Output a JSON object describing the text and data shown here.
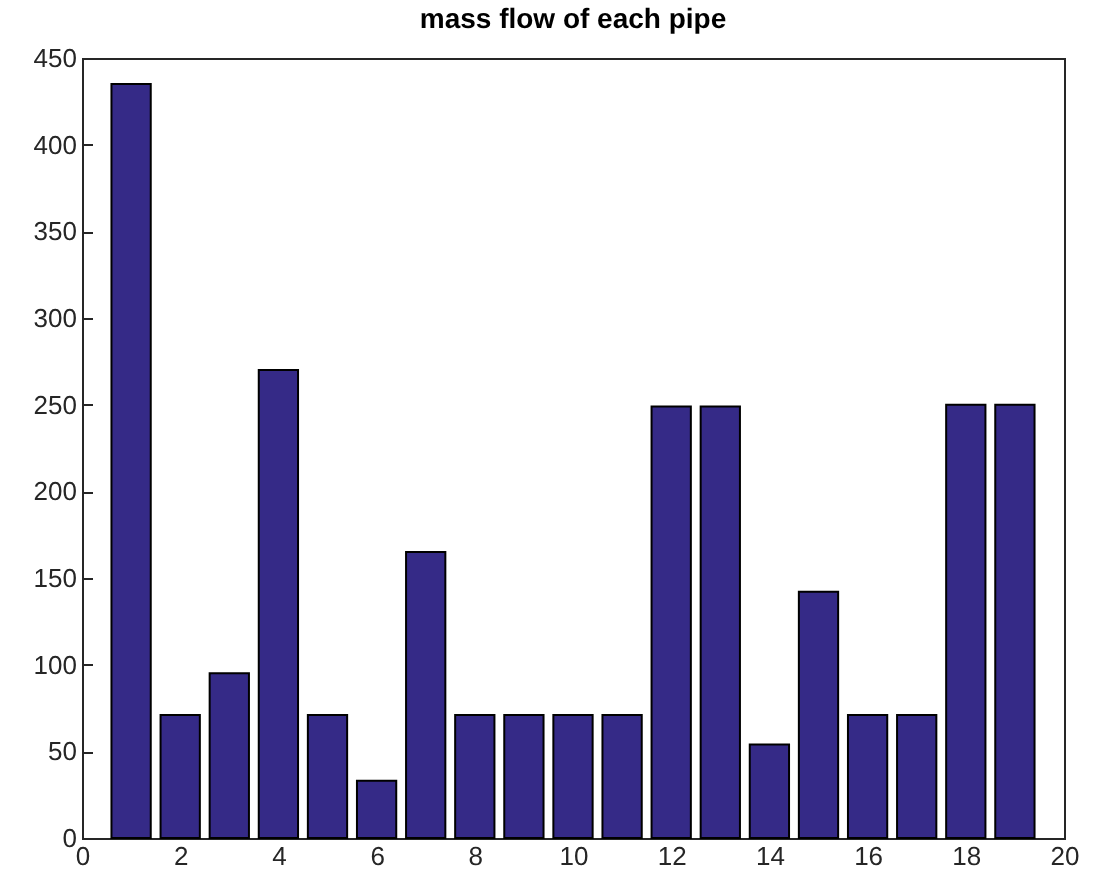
{
  "chart_data": {
    "type": "bar",
    "title": "mass flow of each pipe",
    "x": [
      1,
      2,
      3,
      4,
      5,
      6,
      7,
      8,
      9,
      10,
      11,
      12,
      13,
      14,
      15,
      16,
      17,
      18,
      19
    ],
    "values": [
      435,
      71,
      95,
      270,
      71,
      33,
      165,
      71,
      71,
      71,
      71,
      249,
      249,
      54,
      142,
      71,
      71,
      250,
      250
    ],
    "color": "#352a87",
    "xlim": [
      0,
      20
    ],
    "xticks": [
      0,
      2,
      4,
      6,
      8,
      10,
      12,
      14,
      16,
      18,
      20
    ],
    "ylim": [
      0,
      450
    ],
    "yticks": [
      0,
      50,
      100,
      150,
      200,
      250,
      300,
      350,
      400,
      450
    ],
    "grid": false
  }
}
